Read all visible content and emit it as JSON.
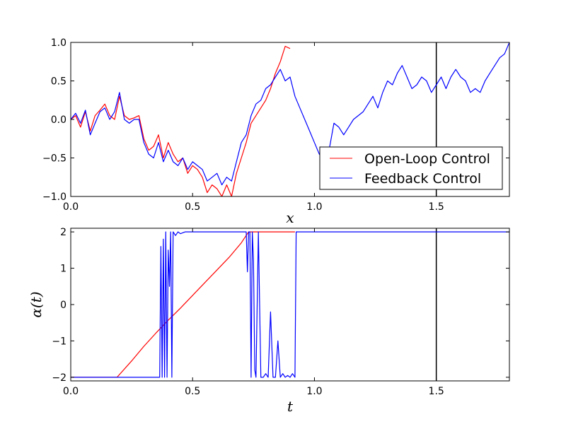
{
  "chart_data": [
    {
      "type": "line",
      "xlabel": "x",
      "ylabel": "",
      "xlim": [
        0.0,
        1.8
      ],
      "ylim": [
        -1.0,
        1.0
      ],
      "xticks": [
        0.0,
        0.5,
        1.0,
        1.5
      ],
      "yticks": [
        -1.0,
        -0.5,
        0.0,
        0.5,
        1.0
      ],
      "xtick_labels": [
        "0.0",
        "0.5",
        "1.0",
        "1.5"
      ],
      "ytick_labels": [
        "−1.0",
        "−0.5",
        "0.0",
        "0.5",
        "1.0"
      ],
      "vline_x": 1.5,
      "legend_position": "lower-right",
      "series": [
        {
          "name": "Open-Loop Control",
          "color": "#ff0000",
          "x": [
            0.0,
            0.02,
            0.04,
            0.06,
            0.08,
            0.1,
            0.12,
            0.14,
            0.16,
            0.18,
            0.2,
            0.22,
            0.24,
            0.26,
            0.28,
            0.3,
            0.32,
            0.34,
            0.36,
            0.38,
            0.4,
            0.42,
            0.44,
            0.46,
            0.48,
            0.5,
            0.52,
            0.54,
            0.56,
            0.58,
            0.6,
            0.62,
            0.64,
            0.66,
            0.68,
            0.7,
            0.72,
            0.74,
            0.76,
            0.78,
            0.8,
            0.82,
            0.84,
            0.86,
            0.88,
            0.9
          ],
          "y": [
            0.0,
            0.05,
            -0.1,
            0.1,
            -0.15,
            0.05,
            0.12,
            0.2,
            0.05,
            0.0,
            0.3,
            0.05,
            0.0,
            0.02,
            0.05,
            -0.25,
            -0.4,
            -0.35,
            -0.2,
            -0.5,
            -0.3,
            -0.45,
            -0.55,
            -0.5,
            -0.7,
            -0.6,
            -0.65,
            -0.75,
            -0.95,
            -0.85,
            -0.9,
            -1.0,
            -0.85,
            -1.0,
            -0.7,
            -0.5,
            -0.3,
            -0.05,
            0.05,
            0.15,
            0.25,
            0.4,
            0.6,
            0.75,
            0.95,
            0.92
          ]
        },
        {
          "name": "Feedback Control",
          "color": "#0000ff",
          "x": [
            0.0,
            0.02,
            0.04,
            0.06,
            0.08,
            0.1,
            0.12,
            0.14,
            0.16,
            0.18,
            0.2,
            0.22,
            0.24,
            0.26,
            0.28,
            0.3,
            0.32,
            0.34,
            0.36,
            0.38,
            0.4,
            0.42,
            0.44,
            0.46,
            0.48,
            0.5,
            0.52,
            0.54,
            0.56,
            0.58,
            0.6,
            0.62,
            0.64,
            0.66,
            0.68,
            0.7,
            0.72,
            0.74,
            0.76,
            0.78,
            0.8,
            0.82,
            0.84,
            0.86,
            0.88,
            0.9,
            0.92,
            0.94,
            0.96,
            0.98,
            1.0,
            1.02,
            1.04,
            1.06,
            1.08,
            1.1,
            1.12,
            1.14,
            1.16,
            1.18,
            1.2,
            1.22,
            1.24,
            1.26,
            1.28,
            1.3,
            1.32,
            1.34,
            1.36,
            1.38,
            1.4,
            1.42,
            1.44,
            1.46,
            1.48,
            1.5,
            1.52,
            1.54,
            1.56,
            1.58,
            1.6,
            1.62,
            1.64,
            1.66,
            1.68,
            1.7,
            1.72,
            1.74,
            1.76,
            1.78,
            1.8
          ],
          "y": [
            0.0,
            0.08,
            -0.05,
            0.12,
            -0.2,
            -0.05,
            0.1,
            0.15,
            0.0,
            0.1,
            0.35,
            0.0,
            -0.05,
            0.0,
            0.0,
            -0.3,
            -0.45,
            -0.5,
            -0.3,
            -0.55,
            -0.4,
            -0.55,
            -0.6,
            -0.5,
            -0.65,
            -0.55,
            -0.6,
            -0.65,
            -0.8,
            -0.75,
            -0.7,
            -0.85,
            -0.75,
            -0.8,
            -0.55,
            -0.3,
            -0.2,
            0.05,
            0.2,
            0.25,
            0.4,
            0.45,
            0.55,
            0.65,
            0.5,
            0.55,
            0.3,
            0.15,
            0.0,
            -0.15,
            -0.3,
            -0.45,
            -0.55,
            -0.4,
            -0.05,
            -0.1,
            -0.2,
            -0.1,
            0.0,
            0.05,
            0.1,
            0.2,
            0.3,
            0.15,
            0.35,
            0.5,
            0.45,
            0.6,
            0.7,
            0.55,
            0.4,
            0.45,
            0.55,
            0.5,
            0.35,
            0.45,
            0.55,
            0.4,
            0.55,
            0.65,
            0.55,
            0.5,
            0.35,
            0.4,
            0.35,
            0.5,
            0.6,
            0.7,
            0.8,
            0.85,
            1.0
          ]
        }
      ]
    },
    {
      "type": "line",
      "xlabel": "t",
      "ylabel": "α(t)",
      "xlim": [
        0.0,
        1.8
      ],
      "ylim": [
        -2.1,
        2.1
      ],
      "xticks": [
        0.0,
        0.5,
        1.0,
        1.5
      ],
      "yticks": [
        -2,
        -1,
        0,
        1,
        2
      ],
      "xtick_labels": [
        "0.0",
        "0.5",
        "1.0",
        "1.5"
      ],
      "ytick_labels": [
        "−2",
        "−1",
        "0",
        "1",
        "2"
      ],
      "vline_x": 1.5,
      "series": [
        {
          "name": "Open-Loop Control",
          "color": "#ff0000",
          "x": [
            0.0,
            0.19,
            0.25,
            0.3,
            0.35,
            0.4,
            0.45,
            0.5,
            0.55,
            0.6,
            0.65,
            0.7,
            0.73,
            0.92
          ],
          "y": [
            -2.0,
            -2.0,
            -1.55,
            -1.15,
            -0.78,
            -0.43,
            -0.1,
            0.25,
            0.6,
            0.95,
            1.3,
            1.7,
            2.0,
            2.0
          ]
        },
        {
          "name": "Feedback Control",
          "color": "#0000ff",
          "x": [
            0.0,
            0.36,
            0.365,
            0.37,
            0.375,
            0.38,
            0.385,
            0.39,
            0.395,
            0.4,
            0.405,
            0.41,
            0.415,
            0.42,
            0.43,
            0.44,
            0.45,
            0.47,
            0.7,
            0.72,
            0.725,
            0.73,
            0.735,
            0.74,
            0.745,
            0.75,
            0.755,
            0.76,
            0.77,
            0.78,
            0.79,
            0.8,
            0.81,
            0.82,
            0.83,
            0.84,
            0.85,
            0.86,
            0.87,
            0.88,
            0.89,
            0.9,
            0.91,
            0.92,
            0.925,
            0.93,
            1.0,
            1.5,
            1.8
          ],
          "y": [
            -2.0,
            -2.0,
            -2.0,
            1.6,
            -2.0,
            1.8,
            -2.0,
            2.0,
            -2.0,
            1.5,
            0.5,
            2.0,
            -2.0,
            2.0,
            1.9,
            2.0,
            1.95,
            2.0,
            2.0,
            2.0,
            0.9,
            2.0,
            2.0,
            -2.0,
            2.0,
            1.2,
            -1.8,
            -2.0,
            2.0,
            -2.0,
            -2.0,
            -1.9,
            -2.0,
            -0.2,
            -2.0,
            -2.0,
            -1.0,
            -2.0,
            -1.9,
            -2.0,
            -1.95,
            -2.0,
            -1.9,
            -2.0,
            2.0,
            2.0,
            2.0,
            2.0,
            2.0
          ]
        }
      ]
    }
  ]
}
